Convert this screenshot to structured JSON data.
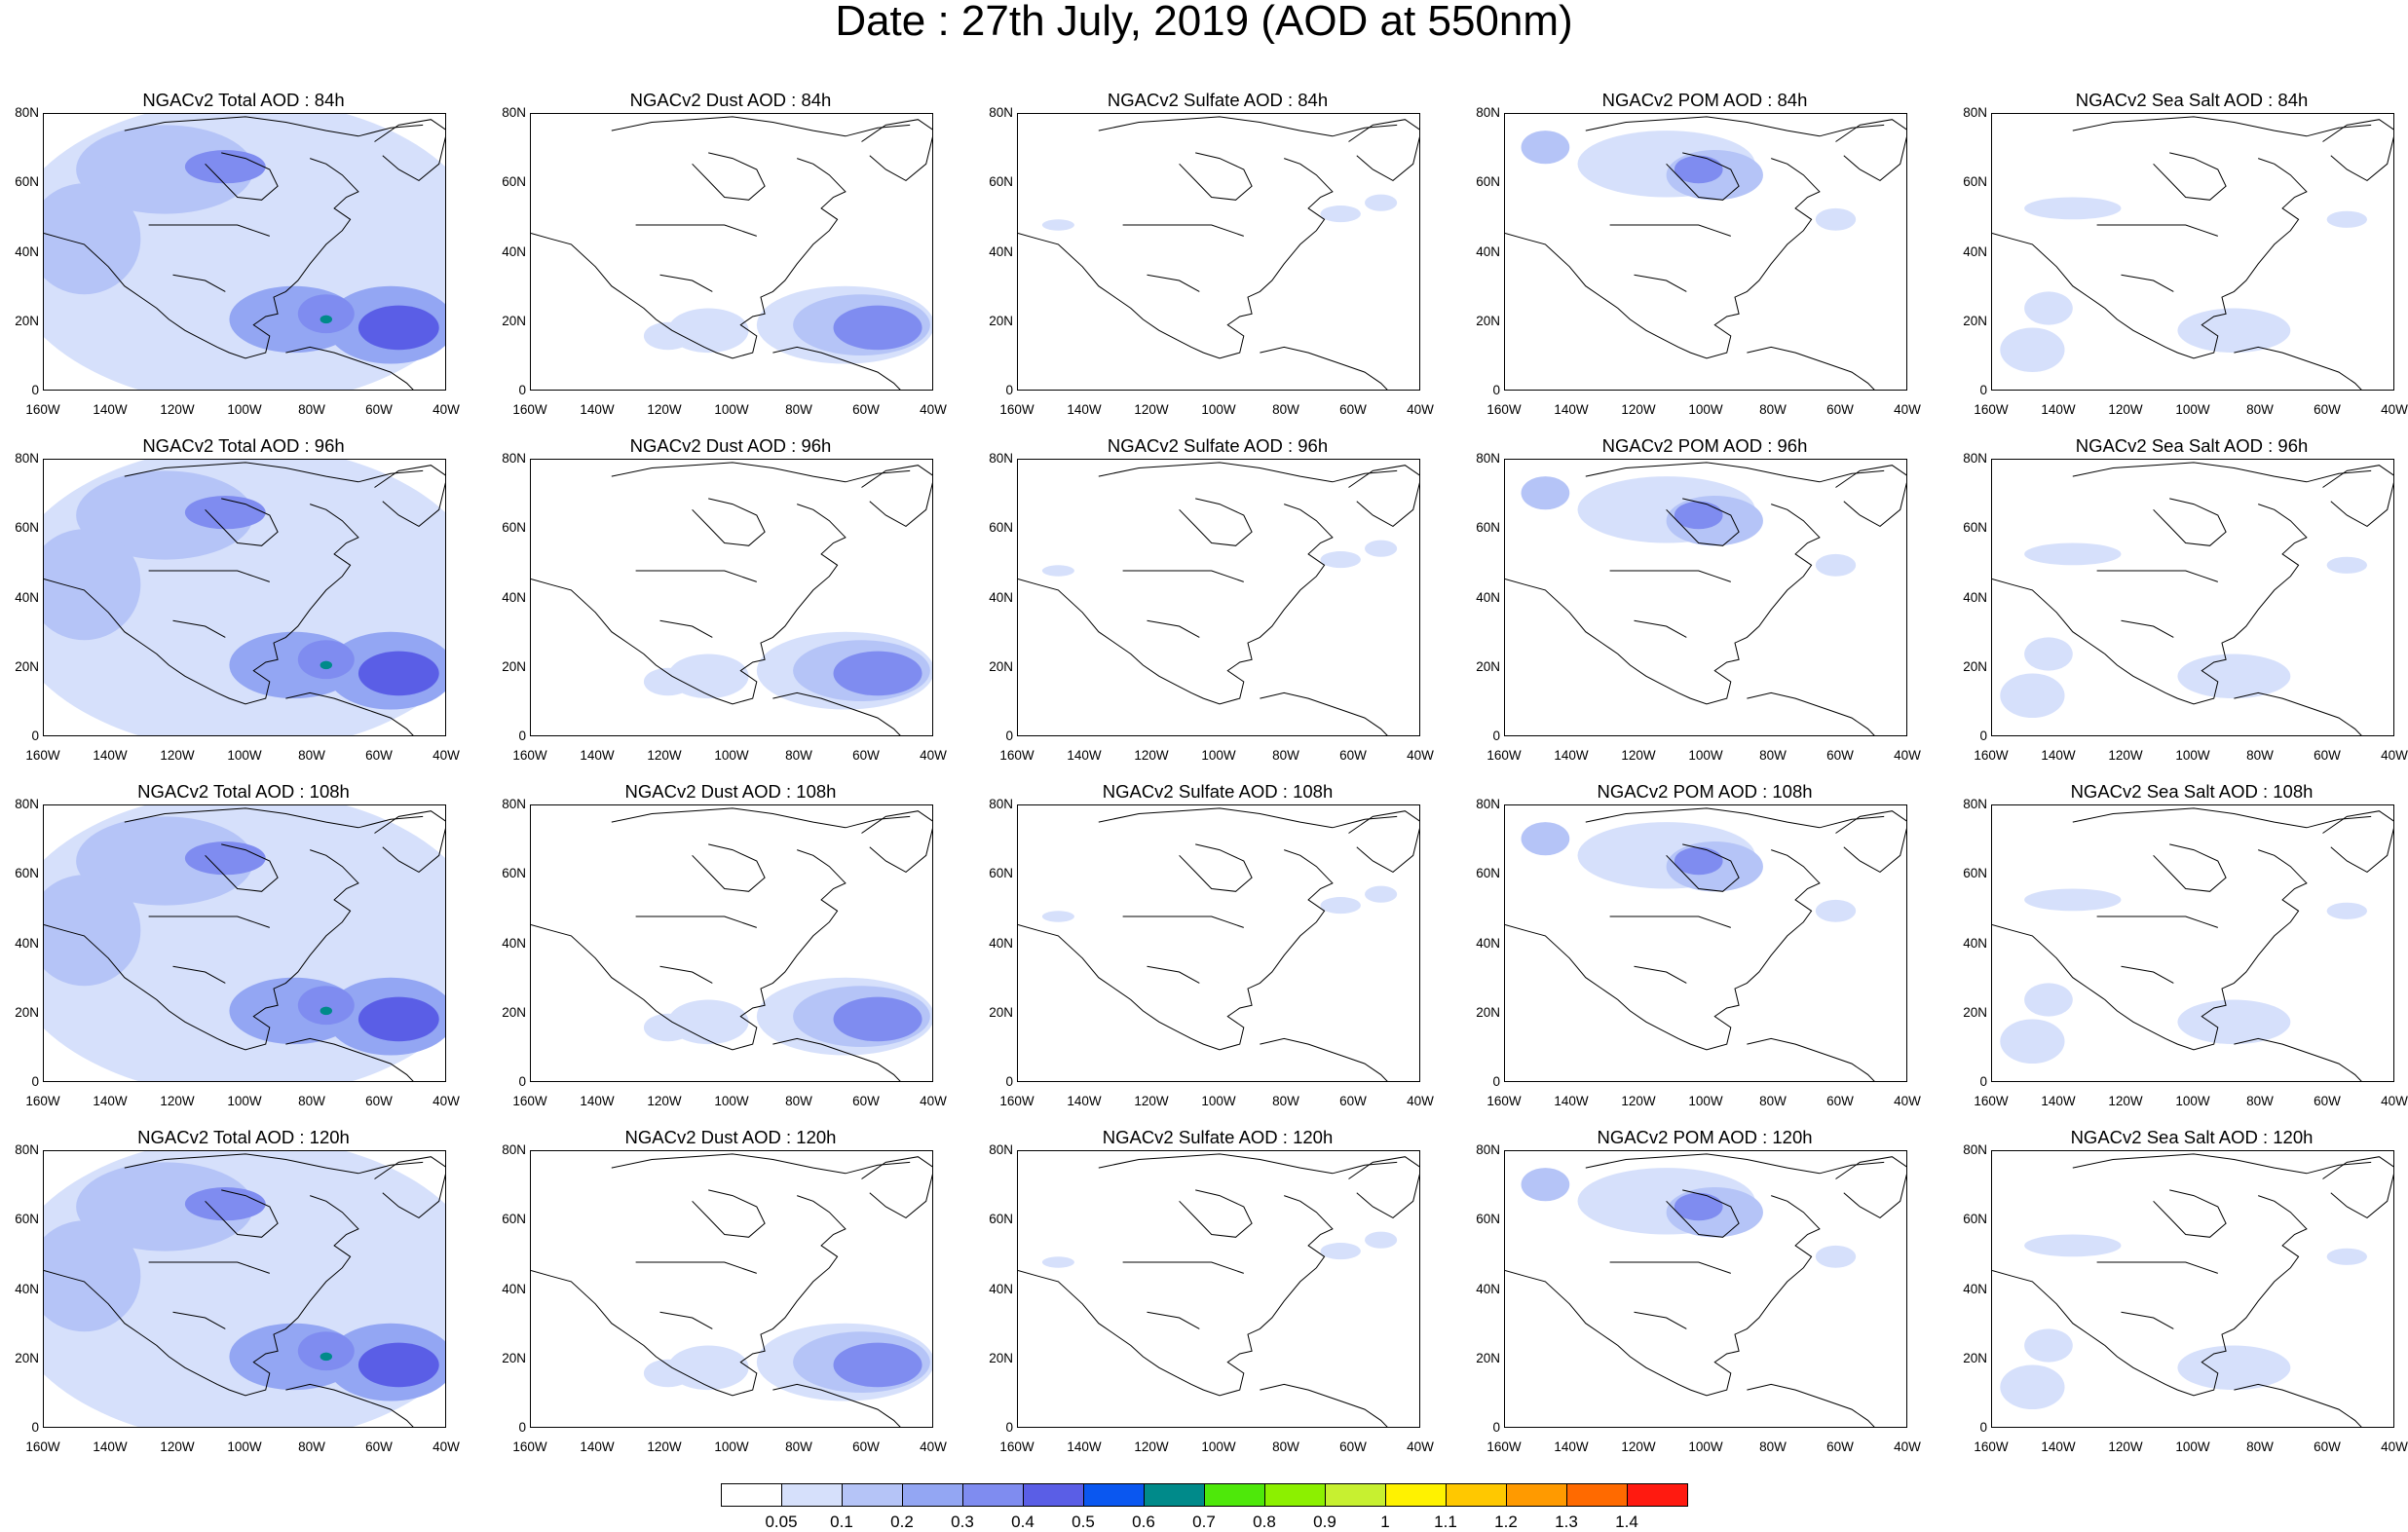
{
  "title": "Date : 27th July, 2019 (AOD at 550nm)",
  "axes": {
    "lat_ticks": [
      "80N",
      "60N",
      "40N",
      "20N",
      "0"
    ],
    "lon_ticks": [
      "160W",
      "140W",
      "120W",
      "100W",
      "80W",
      "60W",
      "40W"
    ]
  },
  "panels": [
    {
      "title": "NGACv2 Total AOD : 84h",
      "kind": "total"
    },
    {
      "title": "NGACv2 Dust AOD : 84h",
      "kind": "dust"
    },
    {
      "title": "NGACv2 Sulfate AOD : 84h",
      "kind": "sulfate"
    },
    {
      "title": "NGACv2 POM AOD : 84h",
      "kind": "pom"
    },
    {
      "title": "NGACv2 Sea Salt AOD : 84h",
      "kind": "seasalt"
    },
    {
      "title": "NGACv2 Total AOD : 96h",
      "kind": "total"
    },
    {
      "title": "NGACv2 Dust AOD : 96h",
      "kind": "dust"
    },
    {
      "title": "NGACv2 Sulfate AOD : 96h",
      "kind": "sulfate"
    },
    {
      "title": "NGACv2 POM AOD : 96h",
      "kind": "pom"
    },
    {
      "title": "NGACv2 Sea Salt AOD : 96h",
      "kind": "seasalt"
    },
    {
      "title": "NGACv2 Total AOD : 108h",
      "kind": "total"
    },
    {
      "title": "NGACv2 Dust AOD : 108h",
      "kind": "dust"
    },
    {
      "title": "NGACv2 Sulfate AOD : 108h",
      "kind": "sulfate"
    },
    {
      "title": "NGACv2 POM AOD : 108h",
      "kind": "pom"
    },
    {
      "title": "NGACv2 Sea Salt AOD : 108h",
      "kind": "seasalt"
    },
    {
      "title": "NGACv2 Total AOD : 120h",
      "kind": "total"
    },
    {
      "title": "NGACv2 Dust AOD : 120h",
      "kind": "dust"
    },
    {
      "title": "NGACv2 Sulfate AOD : 120h",
      "kind": "sulfate"
    },
    {
      "title": "NGACv2 POM AOD : 120h",
      "kind": "pom"
    },
    {
      "title": "NGACv2 Sea Salt  AOD : 120h",
      "kind": "seasalt"
    }
  ],
  "colorbar": {
    "labels": [
      "0.05",
      "0.1",
      "0.2",
      "0.3",
      "0.4",
      "0.5",
      "0.6",
      "0.7",
      "0.8",
      "0.9",
      "1",
      "1.1",
      "1.2",
      "1.3",
      "1.4"
    ],
    "colors": [
      "#ffffff",
      "#d6e0fb",
      "#b5c4f7",
      "#93a6f3",
      "#7f8cf0",
      "#5a5ee6",
      "#0a57f0",
      "#008a8a",
      "#4ee80a",
      "#8cf000",
      "#c7f030",
      "#fff200",
      "#ffc800",
      "#ff9a00",
      "#ff6a00",
      "#ff1a10"
    ]
  }
}
